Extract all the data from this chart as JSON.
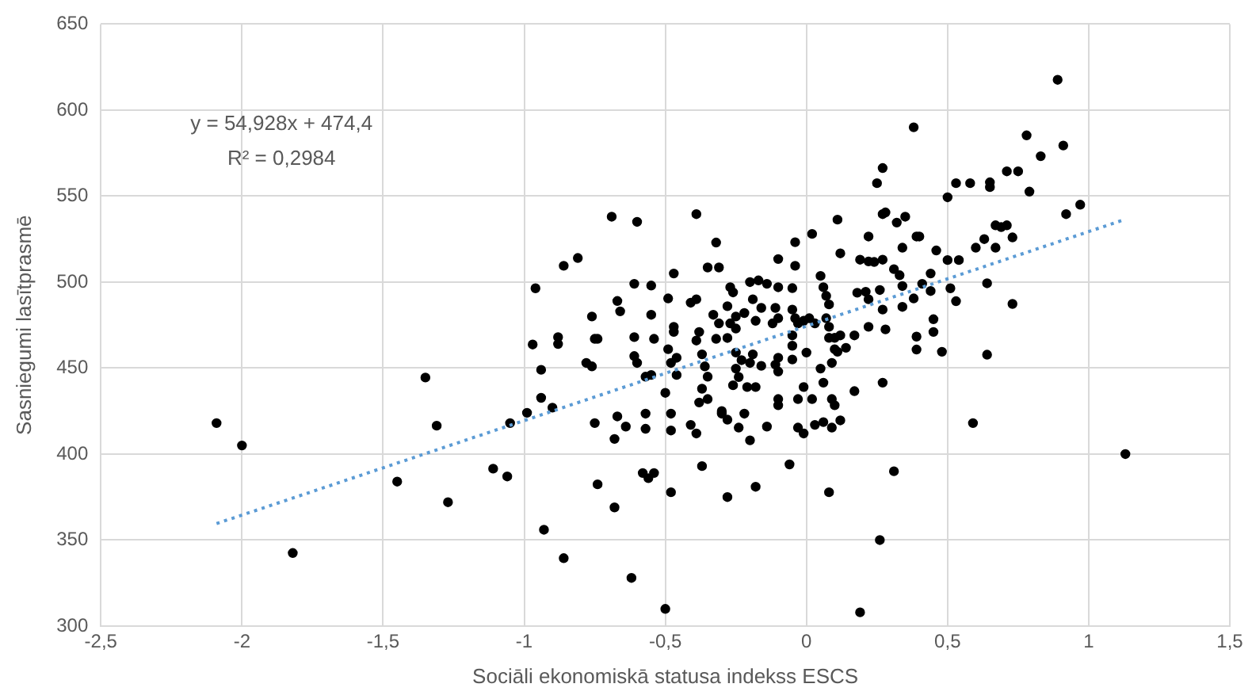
{
  "chart_data": {
    "type": "scatter",
    "xlabel": "Sociāli ekonomiskā statusa indekss ESCS",
    "ylabel": "Sasniegumi lasītprasmē",
    "annotations": [
      "y = 54,928x + 474,4",
      "R² = 0,2984"
    ],
    "xlim": [
      -2.5,
      1.5
    ],
    "xticks": [
      {
        "value": -2.5,
        "label": "-2,5"
      },
      {
        "value": -2,
        "label": "-2"
      },
      {
        "value": -1.5,
        "label": "-1,5"
      },
      {
        "value": -1,
        "label": "-1"
      },
      {
        "value": -0.5,
        "label": "-0,5"
      },
      {
        "value": 0,
        "label": "0"
      },
      {
        "value": 0.5,
        "label": "0,5"
      },
      {
        "value": 1,
        "label": "1"
      },
      {
        "value": 1.5,
        "label": "1,5"
      }
    ],
    "ylim": [
      300,
      650
    ],
    "yticks": [
      300,
      350,
      400,
      450,
      500,
      550,
      600,
      650
    ],
    "grid": true,
    "legend": false,
    "marker": "circle",
    "series": [
      {
        "color": "#000000",
        "x": [
          -2.09,
          -2.0,
          -1.82,
          -1.45,
          -1.35,
          -1.31,
          -1.27,
          -1.11,
          -1.06,
          -1.05,
          -0.99,
          -0.97,
          -0.96,
          -0.94,
          -0.94,
          -0.93,
          -0.9,
          -0.88,
          -0.88,
          -0.86,
          -0.86,
          -0.81,
          -0.76,
          -0.75,
          -0.78,
          -0.76,
          -0.75,
          -0.74,
          -0.69,
          -0.6,
          -0.39,
          -0.32,
          -0.35,
          -0.31,
          -0.47,
          -0.61,
          -0.55,
          -0.67,
          -0.66,
          -0.55,
          -0.74,
          -0.61,
          -0.54,
          -0.47,
          -0.47,
          -0.49,
          -0.41,
          -0.39,
          -0.61,
          -0.6,
          -0.57,
          -0.55,
          -0.49,
          -0.48,
          -0.46,
          -0.46,
          -0.5,
          -0.39,
          -0.38,
          -0.37,
          -0.36,
          -0.37,
          -0.35,
          -0.38,
          -0.35,
          -0.33,
          -0.31,
          -0.32,
          -0.28,
          -0.27,
          -0.26,
          -0.25,
          -0.25,
          -0.27,
          -0.2,
          -0.17,
          -0.14,
          -0.1,
          -0.05,
          -0.19,
          -0.22,
          -0.18,
          -0.16,
          -0.11,
          -0.1,
          -0.12,
          -0.05,
          -0.04,
          -0.03,
          -0.01,
          0.01,
          0.03,
          0.05,
          0.06,
          0.07,
          0.08,
          0.07,
          0.08,
          -0.05,
          -0.28,
          -0.25,
          -0.23,
          -0.2,
          -0.19,
          -0.16,
          -0.25,
          -0.24,
          -0.26,
          -0.21,
          -0.18,
          -0.11,
          -0.1,
          -0.1,
          -0.1,
          -0.1,
          -0.05,
          -0.05,
          0,
          -0.01,
          -0.03,
          0.02,
          0.05,
          0.06,
          0.09,
          0.1,
          0.08,
          0.1,
          0.12,
          0.14,
          0.11,
          0.09,
          0.1,
          0.17,
          0.18,
          0.21,
          0.22,
          0.26,
          0.27,
          0.28,
          0.22,
          0.19,
          0.22,
          0.24,
          0.27,
          0.31,
          0.33,
          0.34,
          0.34,
          0.22,
          0.12,
          0.11,
          0.27,
          0.28,
          0.32,
          0.35,
          0.38,
          0.27,
          0.25,
          0.02,
          -0.04,
          -0.1,
          -0.04,
          0.17,
          0.27,
          0.09,
          0.12,
          0.06,
          0.03,
          -0.01,
          -0.03,
          -0.14,
          -0.2,
          -0.22,
          -0.28,
          -0.3,
          -0.3,
          -0.24,
          -0.41,
          -0.39,
          -0.48,
          -0.48,
          -0.57,
          -0.57,
          -0.64,
          -0.67,
          -0.68,
          -0.68,
          -0.58,
          -0.56,
          -0.54,
          -0.48,
          -0.37,
          -0.28,
          -0.18,
          -0.06,
          0.08,
          0.31,
          0.26,
          -0.62,
          -0.5,
          0.19,
          0.89,
          0.78,
          0.91,
          0.83,
          0.5,
          0.53,
          0.58,
          0.65,
          0.65,
          0.71,
          0.75,
          0.79,
          0.92,
          0.97,
          0.39,
          0.4,
          0.34,
          0.46,
          0.5,
          0.54,
          0.6,
          0.63,
          0.67,
          0.67,
          0.69,
          0.71,
          0.73,
          0.44,
          0.41,
          0.44,
          0.51,
          0.53,
          0.38,
          0.64,
          0.73,
          0.45,
          0.45,
          0.39,
          0.39,
          0.48,
          0.64,
          0.59,
          1.13
        ],
        "values": [
          418,
          405,
          342.5,
          384,
          444.5,
          416.5,
          372,
          391.5,
          387,
          418,
          424,
          463.7,
          496.4,
          432.7,
          449,
          356,
          427,
          468,
          464,
          509.5,
          339.5,
          514,
          480,
          467,
          453,
          451,
          418,
          382.4,
          538,
          535,
          539.5,
          523,
          508.5,
          508.5,
          505,
          499,
          498,
          489,
          483,
          481,
          467,
          468,
          467,
          474,
          471,
          490.5,
          488,
          490,
          457,
          453,
          445,
          446,
          461,
          453,
          456,
          446,
          435.6,
          466,
          471,
          458,
          451,
          438,
          445,
          430,
          432,
          481,
          476,
          467,
          486,
          497,
          494,
          480,
          473,
          476,
          500,
          501,
          499,
          497,
          496.5,
          490,
          482,
          477.5,
          485,
          485,
          479,
          476,
          484,
          479,
          476,
          477.5,
          479,
          476,
          503.6,
          497,
          492,
          487,
          479,
          474,
          469,
          467.5,
          459,
          454.6,
          453,
          458,
          451.3,
          449.7,
          444.8,
          440,
          439,
          439,
          452,
          456,
          448,
          432,
          428.4,
          463,
          455,
          459,
          439,
          432,
          432,
          449.7,
          441.5,
          432,
          428.4,
          467.6,
          467.6,
          469,
          461.8,
          459.5,
          453,
          461,
          469,
          493.8,
          494.4,
          490,
          495.4,
          484,
          472.5,
          474,
          513,
          512,
          511.7,
          513,
          507.5,
          504,
          497.7,
          485.6,
          526.5,
          516.7,
          536.3,
          539.5,
          540.5,
          534.6,
          538,
          590,
          566.3,
          557.5,
          528,
          523.2,
          513.4,
          509.5,
          436.6,
          441.5,
          415.4,
          419.6,
          418.6,
          417,
          412,
          415.4,
          416,
          408,
          423.5,
          420,
          423.5,
          425,
          415.4,
          417,
          412,
          423.5,
          413.7,
          423.5,
          414.7,
          416,
          421.9,
          408.8,
          369,
          389,
          386,
          389,
          377.8,
          393,
          375,
          381,
          394,
          377.8,
          390,
          350,
          328,
          310,
          308,
          617.6,
          585.3,
          579.4,
          573.2,
          549.3,
          557.5,
          557.5,
          558,
          555.2,
          564.4,
          564.4,
          552.6,
          539.5,
          545,
          526.5,
          526.5,
          520,
          518.4,
          512.8,
          512.8,
          520,
          525,
          520,
          533,
          532,
          533,
          526,
          505,
          499,
          494.8,
          496.4,
          488.9,
          490.5,
          499.3,
          487.3,
          478.4,
          471,
          468.3,
          460.8,
          459.5,
          457.8,
          418,
          400
        ]
      },
      {
        "type": "line",
        "color": "#5b9bd5",
        "line_style": "dotted",
        "marker": "none",
        "x": [
          -2.09,
          1.13
        ],
        "values": [
          359.6,
          536.5
        ]
      }
    ]
  }
}
